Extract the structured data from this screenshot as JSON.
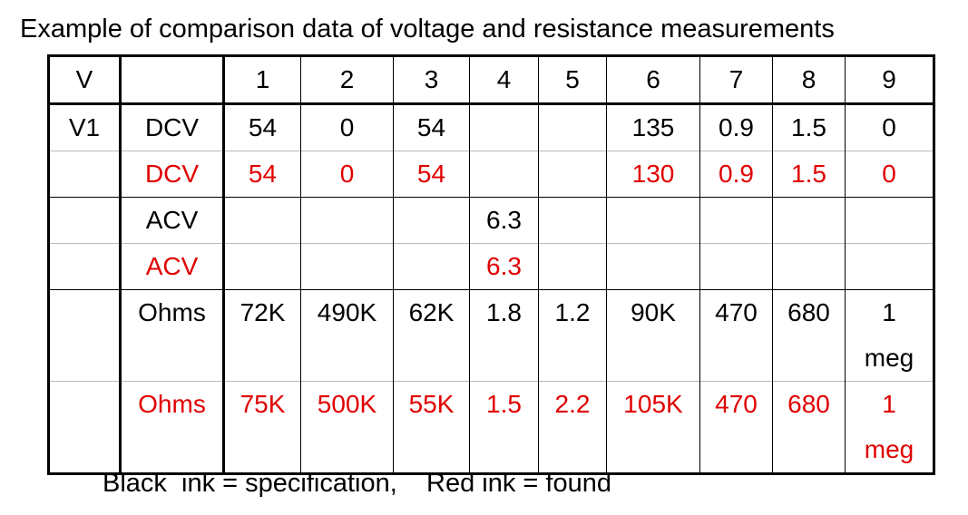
{
  "title": "Example of comparison data of voltage and resistance measurements",
  "table": {
    "header": [
      "V",
      null,
      "1",
      "2",
      "3",
      "4",
      "5",
      "6",
      "7",
      "8",
      "9"
    ],
    "rows": [
      {
        "color": "#000000",
        "cells": [
          "V1",
          "DCV",
          "54",
          "0",
          "54",
          null,
          null,
          "135",
          "0.9",
          "1.5",
          "0"
        ]
      },
      {
        "color": "#e00000",
        "cells": [
          null,
          "DCV",
          "54",
          "0",
          "54",
          null,
          null,
          "130",
          "0.9",
          "1.5",
          "0"
        ]
      },
      {
        "color": "#000000",
        "cells": [
          null,
          "ACV",
          null,
          null,
          null,
          "6.3",
          null,
          null,
          null,
          null,
          null
        ]
      },
      {
        "color": "#e00000",
        "cells": [
          null,
          "ACV",
          null,
          null,
          null,
          "6.3",
          null,
          null,
          null,
          null,
          null
        ]
      },
      {
        "color": "#000000",
        "cells": [
          null,
          "Ohms",
          "72K",
          "490K",
          "62K",
          "1.8",
          "1.2",
          "90K",
          "470",
          "680",
          "1\nmeg"
        ]
      },
      {
        "color": "#e00000",
        "cells": [
          null,
          "Ohms",
          "75K",
          "500K",
          "55K",
          "1.5",
          "2.2",
          "105K",
          "470",
          "680",
          "1\nmeg"
        ]
      }
    ]
  },
  "footer": "Black  ink = specification,    Red ink = found"
}
